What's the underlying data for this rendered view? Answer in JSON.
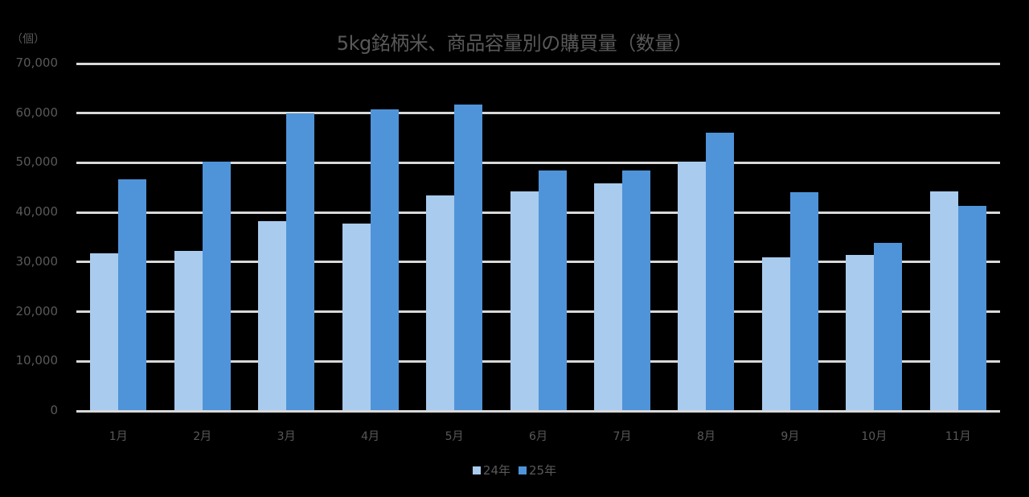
{
  "chart_data": {
    "type": "bar",
    "title": "5kg銘柄米、商品容量別の購買量（数量）",
    "ylabel": "（個）",
    "xlabel": "",
    "ylim": [
      0,
      70000
    ],
    "yticks": [
      "0",
      "10,000",
      "20,000",
      "30,000",
      "40,000",
      "50,000",
      "60,000",
      "70,000"
    ],
    "grid": true,
    "legend_position": "bottom",
    "categories": [
      "1月",
      "2月",
      "3月",
      "4月",
      "5月",
      "6月",
      "7月",
      "8月",
      "9月",
      "10月",
      "11月"
    ],
    "series": [
      {
        "name": "24年",
        "color": "#a9cbee",
        "values": [
          31700,
          32200,
          38300,
          37700,
          43400,
          44200,
          45800,
          50200,
          30900,
          31400,
          44300
        ]
      },
      {
        "name": "25年",
        "color": "#4f94d9",
        "values": [
          46600,
          50200,
          59900,
          60700,
          61800,
          48400,
          48400,
          56000,
          44000,
          33800,
          41400
        ]
      }
    ]
  }
}
